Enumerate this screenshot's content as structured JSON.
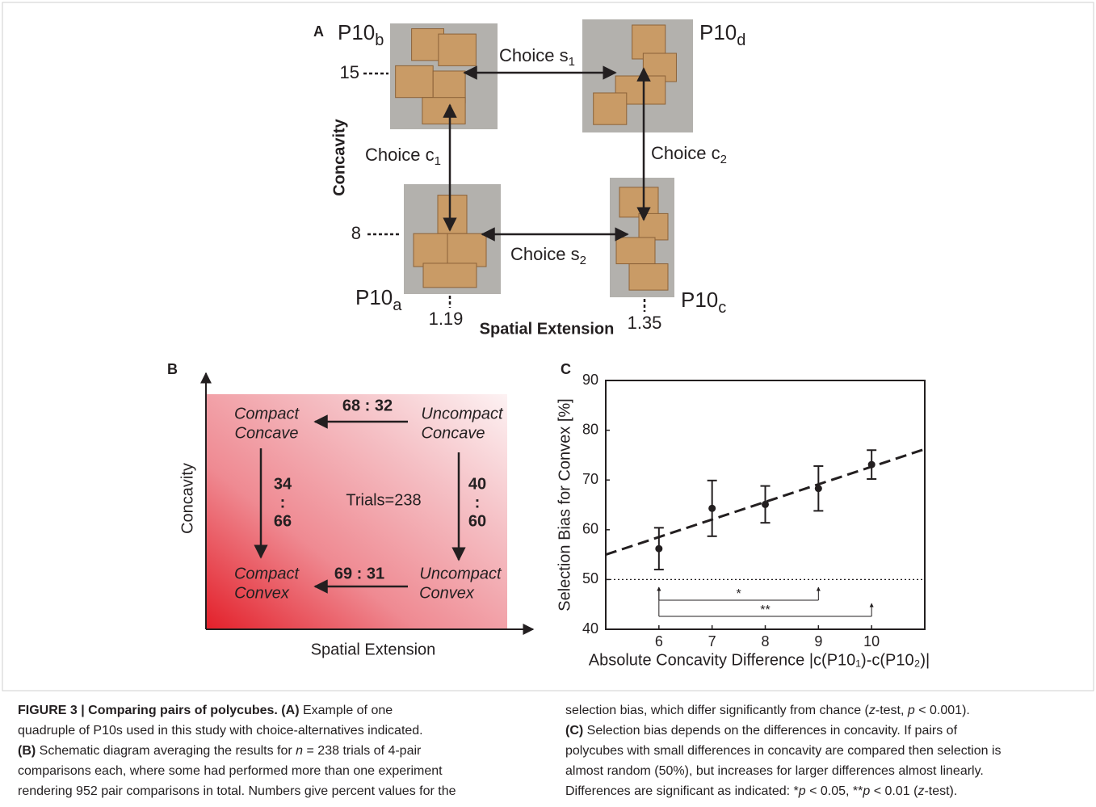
{
  "panel_a": {
    "label": "A",
    "y_axis_label": "Concavity",
    "x_axis_label": "Spatial Extension",
    "cubes": [
      {
        "base": "P10",
        "sub": "b"
      },
      {
        "base": "P10",
        "sub": "d"
      },
      {
        "base": "P10",
        "sub": "a"
      },
      {
        "base": "P10",
        "sub": "c"
      }
    ],
    "choices": [
      {
        "base": "Choice s",
        "sub": "1"
      },
      {
        "base": "Choice c",
        "sub": "1"
      },
      {
        "base": "Choice c",
        "sub": "2"
      },
      {
        "base": "Choice s",
        "sub": "2"
      }
    ],
    "y_ticks": [
      15,
      8
    ],
    "x_ticks": [
      1.19,
      1.35
    ]
  },
  "panel_b": {
    "label": "B",
    "y_axis_label": "Concavity",
    "x_axis_label": "Spatial Extension",
    "corners": [
      [
        "Compact",
        "Concave"
      ],
      [
        "Uncompact",
        "Concave"
      ],
      [
        "Compact",
        "Convex"
      ],
      [
        "Uncompact",
        "Convex"
      ]
    ],
    "top_ratio": "68 : 32",
    "bottom_ratio": "69 : 31",
    "left_ratio": [
      "34",
      ":",
      "66"
    ],
    "right_ratio": [
      "40",
      ":",
      "60"
    ],
    "center": "Trials=238"
  },
  "chart_data": {
    "type": "scatter",
    "panel_label": "C",
    "x_label": "Absolute Concavity Difference |c(P10₁)-c(P10₂)|",
    "y_label": "Selection Bias for Convex [%]",
    "x": [
      6,
      7,
      8,
      9,
      10
    ],
    "series": [
      {
        "color": "#231f20",
        "values": [
          56.2,
          64.3,
          65.1,
          68.3,
          73.1
        ],
        "errors": [
          4.2,
          5.6,
          3.7,
          4.5,
          2.9
        ]
      }
    ],
    "fit": {
      "x": [
        5,
        11
      ],
      "y": [
        55,
        76.2
      ]
    },
    "reference_line": 50,
    "annotations": [
      {
        "text": "*",
        "x": [
          6,
          9
        ]
      },
      {
        "text": "**",
        "x": [
          6,
          10
        ]
      }
    ],
    "xlim": [
      5,
      11
    ],
    "ylim": [
      40,
      90
    ],
    "xticks": [
      6,
      7,
      8,
      9,
      10
    ],
    "yticks": [
      40,
      50,
      60,
      70,
      80,
      90
    ]
  },
  "caption": {
    "left": [
      [
        {
          "text": "FIGURE 3 | Comparing pairs of polycubes. (A)",
          "style": "bold"
        },
        {
          "text": " Example of one"
        }
      ],
      [
        {
          "text": "quadruple of P10s used in this study with choice-alternatives indicated."
        }
      ],
      [
        {
          "text": "(B)",
          "style": "bold"
        },
        {
          "text": " Schematic diagram averaging the results for "
        },
        {
          "text": "n",
          "style": "italic"
        },
        {
          "text": " = 238 trials of 4-pair"
        }
      ],
      [
        {
          "text": "comparisons each, where some had performed more than one experiment"
        }
      ],
      [
        {
          "text": "rendering 952 pair comparisons in total. Numbers give percent values for the"
        }
      ]
    ],
    "right": [
      [
        {
          "text": "selection bias, which differ significantly from chance ("
        },
        {
          "text": "z",
          "style": "italic"
        },
        {
          "text": "-test, "
        },
        {
          "text": "p",
          "style": "italic"
        },
        {
          "text": " < 0.001)."
        }
      ],
      [
        {
          "text": "(C)",
          "style": "bold"
        },
        {
          "text": " Selection bias depends on the differences in concavity. If pairs of"
        }
      ],
      [
        {
          "text": "polycubes with small differences in concavity are compared then selection is"
        }
      ],
      [
        {
          "text": "almost random (50%), but increases for larger differences almost linearly."
        }
      ],
      [
        {
          "text": "Differences are significant as indicated: *"
        },
        {
          "text": "p",
          "style": "italic"
        },
        {
          "text": " < 0.05, **"
        },
        {
          "text": "p",
          "style": "italic"
        },
        {
          "text": " < 0.01 ("
        },
        {
          "text": "z",
          "style": "italic"
        },
        {
          "text": "-test)."
        }
      ]
    ]
  }
}
